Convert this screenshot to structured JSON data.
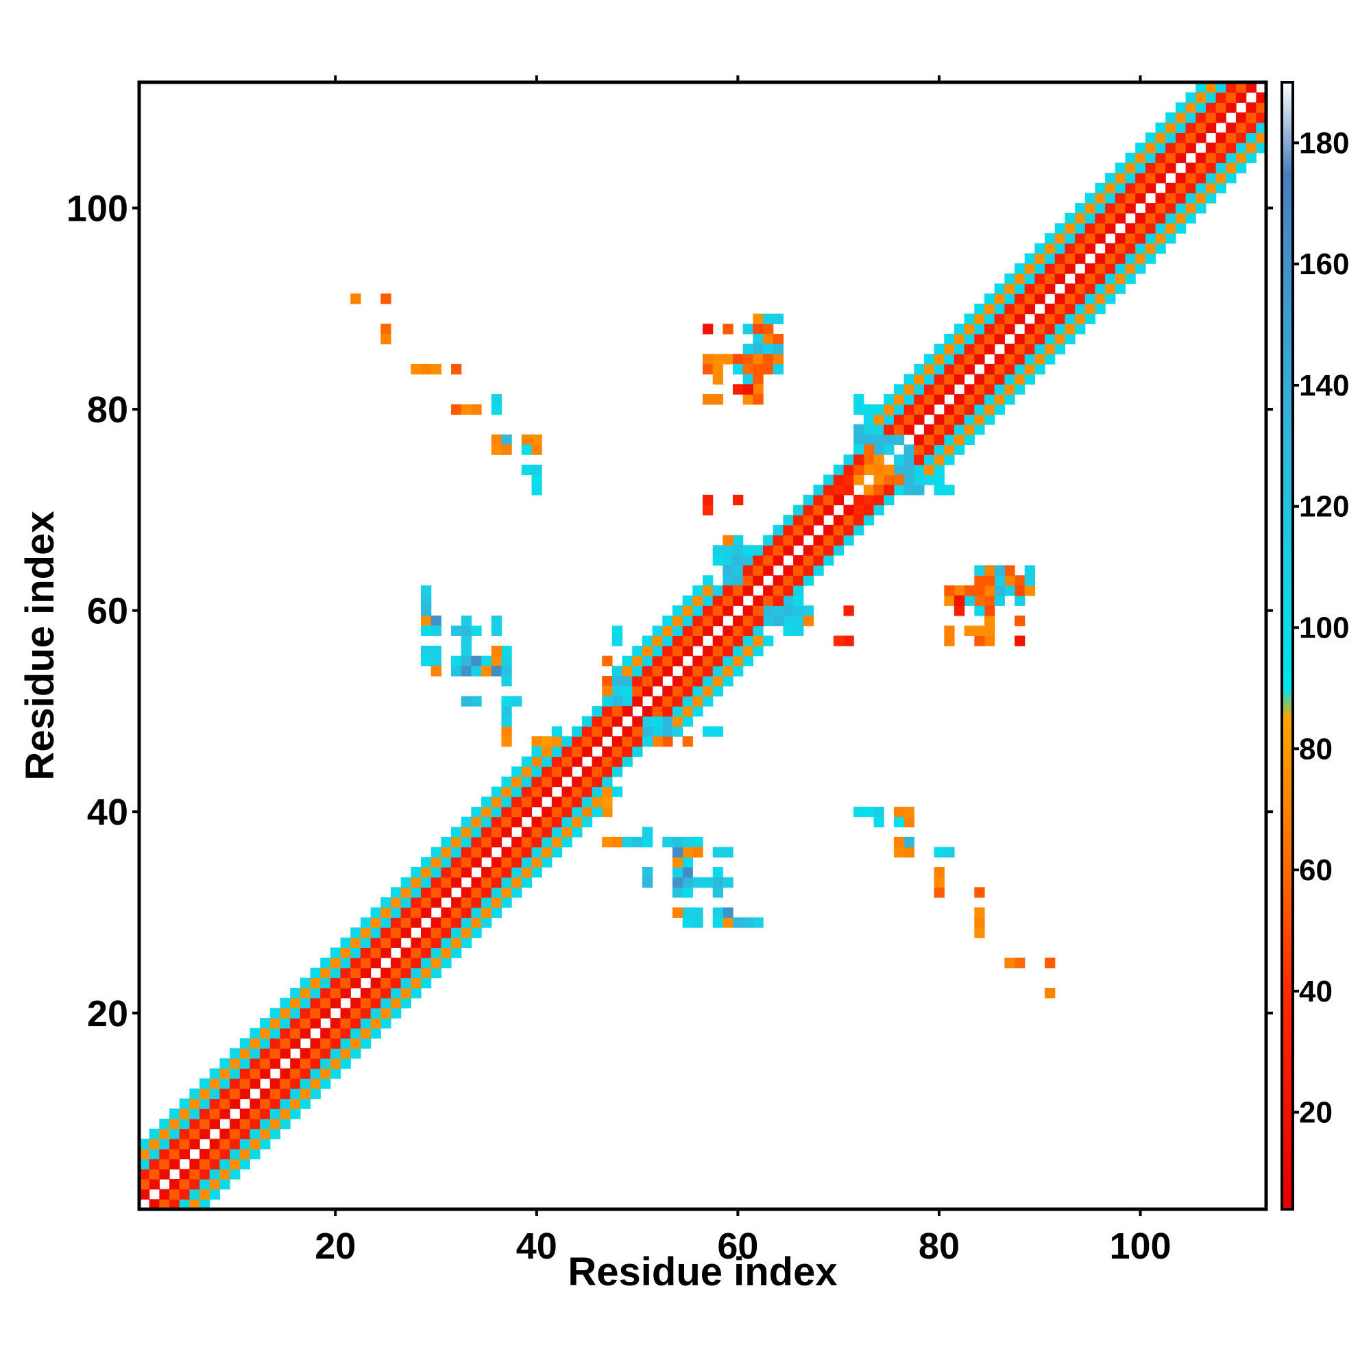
{
  "chart_data": {
    "type": "heatmap",
    "title": "",
    "xlabel": "Residue index",
    "ylabel": "Residue index",
    "xlim": [
      1,
      112
    ],
    "ylim": [
      1,
      112
    ],
    "x_ticks": [
      20,
      40,
      60,
      80,
      100
    ],
    "y_ticks": [
      20,
      40,
      60,
      80,
      100
    ],
    "colorbar": {
      "range": [
        4,
        190
      ],
      "ticks": [
        20,
        40,
        60,
        80,
        100,
        120,
        140,
        160,
        180
      ],
      "stops": [
        {
          "value": 4,
          "color": "#e60000"
        },
        {
          "value": 40,
          "color": "#ff2a00"
        },
        {
          "value": 60,
          "color": "#ff6a00"
        },
        {
          "value": 85,
          "color": "#ffa500"
        },
        {
          "value": 90,
          "color": "#00e5ee"
        },
        {
          "value": 130,
          "color": "#30b8dc"
        },
        {
          "value": 175,
          "color": "#4a7fbf"
        },
        {
          "value": 190,
          "color": "#ffffff"
        }
      ]
    },
    "band_pattern": {
      "description_values_by_offset": {
        "1": 14,
        "2": 55,
        "3": 30,
        "4": 105,
        "5": 75,
        "6": 100
      },
      "segments": [
        {
          "from": 1,
          "to": 42,
          "max_offset": 6
        },
        {
          "from": 42,
          "to": 47,
          "max_offset": 4
        },
        {
          "from": 47,
          "to": 57,
          "max_offset": 6
        },
        {
          "from": 57,
          "to": 72,
          "max_offset": 4
        },
        {
          "from": 72,
          "to": 112,
          "max_offset": 6
        }
      ]
    },
    "contacts": [
      [
        22,
        91,
        70
      ],
      [
        25,
        91,
        55
      ],
      [
        25,
        88,
        60
      ],
      [
        25,
        87,
        70
      ],
      [
        28,
        84,
        75
      ],
      [
        29,
        84,
        70
      ],
      [
        32,
        84,
        55
      ],
      [
        32,
        80,
        55
      ],
      [
        33,
        80,
        75
      ],
      [
        36,
        80,
        100
      ],
      [
        36,
        81,
        110
      ],
      [
        36,
        77,
        70
      ],
      [
        36,
        76,
        75
      ],
      [
        37,
        77,
        130
      ],
      [
        39,
        77,
        70
      ],
      [
        40,
        77,
        75
      ],
      [
        39,
        76,
        95
      ],
      [
        40,
        76,
        70
      ],
      [
        39,
        74,
        100
      ],
      [
        40,
        74,
        110
      ],
      [
        40,
        73,
        95
      ],
      [
        40,
        72,
        100
      ],
      [
        29,
        62,
        110
      ],
      [
        29,
        61,
        120
      ],
      [
        29,
        59,
        75
      ],
      [
        30,
        59,
        160
      ],
      [
        29,
        58,
        100
      ],
      [
        30,
        58,
        110
      ],
      [
        32,
        58,
        120
      ],
      [
        33,
        58,
        130
      ],
      [
        34,
        58,
        100
      ],
      [
        33,
        59,
        110
      ],
      [
        36,
        58,
        110
      ],
      [
        29,
        55,
        100
      ],
      [
        30,
        55,
        110
      ],
      [
        32,
        55,
        100
      ],
      [
        33,
        55,
        130
      ],
      [
        34,
        55,
        165
      ],
      [
        35,
        55,
        100
      ],
      [
        36,
        55,
        75
      ],
      [
        37,
        55,
        110
      ],
      [
        30,
        54,
        70
      ],
      [
        32,
        54,
        120
      ],
      [
        33,
        54,
        160
      ],
      [
        34,
        54,
        110
      ],
      [
        35,
        54,
        75
      ],
      [
        36,
        54,
        165
      ],
      [
        37,
        54,
        120
      ],
      [
        37,
        53,
        110
      ],
      [
        33,
        51,
        130
      ],
      [
        34,
        51,
        120
      ],
      [
        37,
        51,
        100
      ],
      [
        38,
        51,
        110
      ],
      [
        37,
        50,
        120
      ],
      [
        37,
        48,
        70
      ],
      [
        37,
        47,
        75
      ],
      [
        40,
        47,
        75
      ],
      [
        41,
        47,
        80
      ],
      [
        40,
        45,
        70
      ],
      [
        57,
        71,
        30
      ],
      [
        57,
        70,
        40
      ],
      [
        60,
        71,
        30
      ],
      [
        57,
        88,
        20
      ],
      [
        59,
        88,
        55
      ],
      [
        61,
        88,
        110
      ],
      [
        62,
        88,
        50
      ],
      [
        63,
        88,
        55
      ],
      [
        62,
        89,
        75
      ],
      [
        63,
        89,
        110
      ],
      [
        62,
        87,
        110
      ],
      [
        63,
        87,
        70
      ],
      [
        64,
        87,
        55
      ],
      [
        62,
        86,
        130
      ],
      [
        63,
        86,
        110
      ],
      [
        57,
        85,
        70
      ],
      [
        59,
        85,
        75
      ],
      [
        60,
        85,
        50
      ],
      [
        61,
        85,
        55
      ],
      [
        62,
        85,
        70
      ],
      [
        63,
        85,
        55
      ],
      [
        64,
        85,
        70
      ],
      [
        57,
        84,
        55
      ],
      [
        60,
        84,
        100
      ],
      [
        61,
        84,
        60
      ],
      [
        62,
        84,
        55
      ],
      [
        63,
        84,
        55
      ],
      [
        61,
        83,
        110
      ],
      [
        62,
        83,
        55
      ],
      [
        60,
        82,
        30
      ],
      [
        62,
        82,
        70
      ],
      [
        57,
        81,
        70
      ],
      [
        61,
        81,
        75
      ],
      [
        62,
        81,
        55
      ],
      [
        71,
        60,
        30
      ],
      [
        70,
        57,
        30
      ],
      [
        71,
        57,
        40
      ],
      [
        81,
        62,
        55
      ],
      [
        82,
        62,
        60
      ],
      [
        83,
        62,
        110
      ],
      [
        84,
        62,
        70
      ],
      [
        85,
        62,
        55
      ],
      [
        86,
        62,
        75
      ],
      [
        87,
        62,
        70
      ],
      [
        88,
        62,
        55
      ],
      [
        89,
        62,
        70
      ],
      [
        81,
        61,
        70
      ],
      [
        82,
        61,
        20
      ],
      [
        83,
        61,
        55
      ],
      [
        84,
        61,
        100
      ],
      [
        85,
        61,
        60
      ],
      [
        86,
        61,
        110
      ],
      [
        88,
        61,
        70
      ],
      [
        84,
        63,
        55
      ],
      [
        85,
        63,
        70
      ],
      [
        86,
        63,
        55
      ],
      [
        87,
        63,
        110
      ],
      [
        89,
        63,
        100
      ],
      [
        84,
        64,
        110
      ],
      [
        85,
        64,
        55
      ],
      [
        86,
        64,
        130
      ],
      [
        87,
        64,
        100
      ],
      [
        89,
        64,
        110
      ],
      [
        85,
        60,
        55
      ],
      [
        88,
        59,
        30
      ],
      [
        81,
        58,
        70
      ],
      [
        83,
        58,
        75
      ],
      [
        84,
        58,
        75
      ],
      [
        85,
        58,
        75
      ],
      [
        72,
        40,
        100
      ],
      [
        73,
        40,
        100
      ],
      [
        74,
        40,
        110
      ],
      [
        76,
        40,
        70
      ],
      [
        77,
        40,
        75
      ],
      [
        74,
        39,
        110
      ],
      [
        76,
        39,
        110
      ],
      [
        77,
        39,
        70
      ],
      [
        76,
        37,
        70
      ],
      [
        77,
        37,
        130
      ],
      [
        76,
        36,
        75
      ],
      [
        77,
        36,
        75
      ],
      [
        80,
        36,
        70
      ],
      [
        81,
        36,
        100
      ],
      [
        80,
        34,
        70
      ],
      [
        80,
        33,
        70
      ],
      [
        84,
        32,
        55
      ],
      [
        84,
        30,
        75
      ],
      [
        84,
        29,
        70
      ],
      [
        87,
        25,
        75
      ],
      [
        88,
        25,
        70
      ],
      [
        91,
        25,
        60
      ],
      [
        91,
        22,
        75
      ],
      [
        47,
        37,
        75
      ],
      [
        48,
        37,
        70
      ],
      [
        49,
        37,
        110
      ],
      [
        50,
        37,
        100
      ],
      [
        51,
        37,
        110
      ],
      [
        51,
        38,
        130
      ],
      [
        54,
        37,
        120
      ],
      [
        55,
        37,
        110
      ],
      [
        56,
        37,
        100
      ],
      [
        55,
        36,
        110
      ],
      [
        56,
        36,
        70
      ],
      [
        59,
        36,
        110
      ],
      [
        51,
        34,
        130
      ],
      [
        51,
        33,
        110
      ],
      [
        55,
        34,
        70
      ],
      [
        55,
        33,
        120
      ],
      [
        56,
        33,
        110
      ],
      [
        57,
        33,
        110
      ],
      [
        58,
        33,
        110
      ],
      [
        59,
        33,
        100
      ],
      [
        55,
        32,
        100
      ],
      [
        58,
        32,
        100
      ],
      [
        55,
        30,
        75
      ],
      [
        56,
        30,
        110
      ],
      [
        58,
        30,
        110
      ],
      [
        59,
        30,
        130
      ],
      [
        60,
        29,
        130
      ],
      [
        61,
        29,
        110
      ],
      [
        55,
        29,
        75
      ],
      [
        56,
        29,
        110
      ],
      [
        58,
        29,
        130
      ],
      [
        59,
        29,
        75
      ],
      [
        47,
        53,
        55
      ],
      [
        48,
        53,
        130
      ],
      [
        49,
        53,
        130
      ],
      [
        48,
        52,
        110
      ],
      [
        49,
        52,
        100
      ],
      [
        48,
        51,
        130
      ],
      [
        49,
        51,
        110
      ],
      [
        52,
        48,
        130
      ],
      [
        53,
        48,
        120
      ],
      [
        54,
        48,
        110
      ],
      [
        52,
        47,
        70
      ],
      [
        55,
        47,
        60
      ],
      [
        58,
        48,
        100
      ],
      [
        48,
        57,
        100
      ],
      [
        59,
        65,
        110
      ],
      [
        60,
        65,
        130
      ],
      [
        61,
        65,
        120
      ],
      [
        58,
        66,
        110
      ],
      [
        59,
        66,
        110
      ],
      [
        60,
        67,
        110
      ],
      [
        63,
        59,
        120
      ],
      [
        64,
        59,
        130
      ],
      [
        65,
        59,
        110
      ],
      [
        63,
        60,
        130
      ],
      [
        64,
        60,
        120
      ],
      [
        65,
        60,
        130
      ],
      [
        66,
        60,
        120
      ],
      [
        65,
        61,
        130
      ],
      [
        66,
        61,
        100
      ],
      [
        65,
        59,
        70
      ],
      [
        66,
        59,
        75
      ],
      [
        67,
        59,
        70
      ],
      [
        65,
        58,
        100
      ],
      [
        66,
        58,
        110
      ],
      [
        72,
        77,
        130
      ],
      [
        73,
        77,
        130
      ],
      [
        74,
        77,
        130
      ],
      [
        75,
        77,
        130
      ],
      [
        76,
        77,
        130
      ],
      [
        72,
        78,
        130
      ],
      [
        73,
        78,
        110
      ],
      [
        72,
        81,
        100
      ],
      [
        73,
        80,
        100
      ],
      [
        75,
        73,
        60
      ],
      [
        76,
        72,
        100
      ],
      [
        77,
        73,
        110
      ],
      [
        78,
        73,
        110
      ],
      [
        79,
        73,
        100
      ],
      [
        80,
        73,
        110
      ],
      [
        80,
        72,
        100
      ],
      [
        78,
        72,
        70
      ],
      [
        77,
        72,
        75
      ],
      [
        76,
        74,
        130
      ],
      [
        76,
        75,
        110
      ],
      [
        77,
        75,
        130
      ],
      [
        71,
        72,
        30
      ],
      [
        70,
        72,
        40
      ],
      [
        71,
        73,
        40
      ],
      [
        72,
        73,
        75
      ],
      [
        73,
        74,
        75
      ],
      [
        74,
        74,
        70
      ],
      [
        74,
        75,
        75
      ],
      [
        73,
        76,
        60
      ],
      [
        75,
        76,
        130
      ]
    ]
  }
}
